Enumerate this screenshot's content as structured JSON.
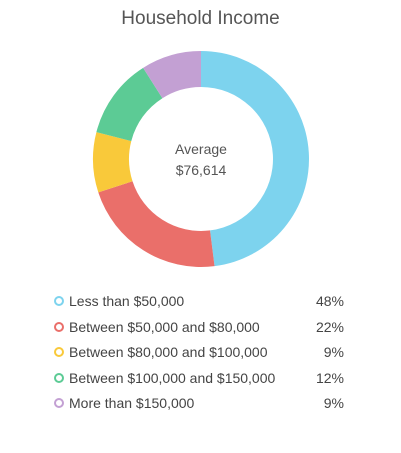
{
  "chart_data": {
    "type": "pie",
    "title": "Household Income",
    "center_label": "Average",
    "center_value": "$76,614",
    "categories": [
      "Less than $50,000",
      "Between $50,000 and $80,000",
      "Between $80,000 and $100,000",
      "Between $100,000 and $150,000",
      "More than $150,000"
    ],
    "values": [
      48,
      22,
      9,
      12,
      9
    ],
    "value_labels": [
      "48%",
      "22%",
      "9%",
      "12%",
      "9%"
    ],
    "colors": [
      "#7dd3ee",
      "#ea6f6a",
      "#f9c93a",
      "#5ccb95",
      "#c3a0d3"
    ],
    "legend_position": "bottom"
  }
}
